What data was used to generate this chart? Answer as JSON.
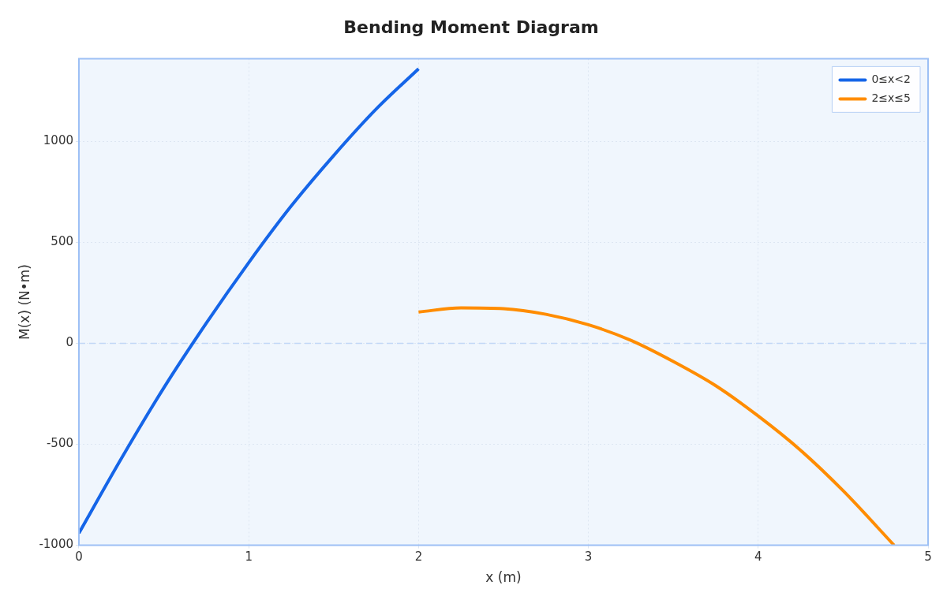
{
  "chart_data": {
    "type": "line",
    "title": "Bending Moment Diagram",
    "xlabel": "x (m)",
    "ylabel": "M(x) (N•m)",
    "xlim": [
      0,
      5
    ],
    "xticks": [
      0,
      1,
      2,
      3,
      4,
      5
    ],
    "ylim": [
      -1000,
      1410
    ],
    "yticks": [
      -1000,
      -500,
      0,
      500,
      1000
    ],
    "grid": true,
    "legend": "top right",
    "marker": "none",
    "line_style": "solid",
    "ref_lines": [
      {
        "axis": "y",
        "value": 0,
        "color": "#c2d8f7",
        "line_style": "dashed"
      }
    ],
    "series": [
      {
        "name": "0≤x<2",
        "color": "#1565e8",
        "x": [
          0,
          0.25,
          0.5,
          0.75,
          1,
          1.25,
          1.5,
          1.75,
          2
        ],
        "values": [
          -940,
          -570,
          -220,
          100,
          400,
          680,
          930,
          1160,
          1360
        ]
      },
      {
        "name": "2≤x≤5",
        "color": "#ff8c00",
        "x": [
          2,
          2.25,
          2.5,
          2.75,
          3,
          3.25,
          3.5,
          3.75,
          4,
          4.25,
          4.5,
          4.8
        ],
        "values": [
          155,
          176,
          172,
          144,
          92,
          15,
          -90,
          -210,
          -360,
          -530,
          -730,
          -1000
        ]
      }
    ]
  }
}
